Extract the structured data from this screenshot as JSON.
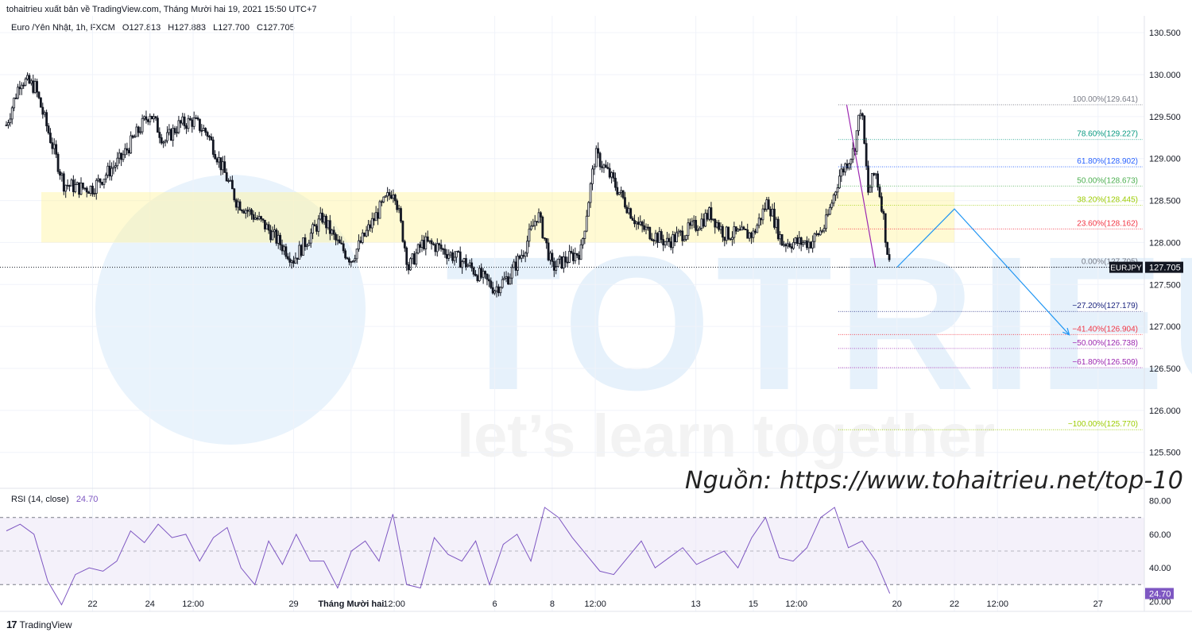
{
  "header": {
    "publisher_line": "tohaitrieu xuất bản về TradingView.com, Tháng Mười hai 19, 2021 15:50 UTC+7"
  },
  "symbol_bar": {
    "name": "Euro /Yên Nhật, 1h, FXCM",
    "open": "O127.813",
    "high": "H127.883",
    "low": "L127.700",
    "close": "C127.705"
  },
  "watermark": {
    "brand": "TOTRIEU",
    "slogan": "let’s learn together"
  },
  "source_note": "Nguồn: https://www.tohaitrieu.net/top-10",
  "footer": {
    "logo": "17",
    "brand": "TradingView"
  },
  "colors": {
    "candle": "#131722",
    "rsi": "#7e57c2",
    "zone": "#fff59d",
    "arrow": "#2196f3",
    "magenta": "#9c27b0",
    "red": "#f23645",
    "blue": "#2962ff",
    "navy": "#1a237e",
    "green": "#4caf50",
    "teal": "#089981",
    "lime": "#9ccc00",
    "gray": "#787b86"
  },
  "chart_data": [
    {
      "type": "candlestick",
      "symbol_tag": "EURJPY",
      "last_price": "127.705",
      "ylim": [
        125.1,
        130.7
      ],
      "y_ticks": [
        "125.500",
        "126.000",
        "126.500",
        "127.000",
        "127.500",
        "128.000",
        "128.500",
        "129.000",
        "129.500",
        "130.000",
        "130.500"
      ],
      "x_ticks": [
        "22",
        "24",
        "12:00",
        "29",
        "Tháng Mười hai",
        "12:00",
        "6",
        "8",
        "12:00",
        "13",
        "15",
        "12:00",
        "20",
        "22",
        "12:00",
        "27"
      ],
      "price_path": [
        [
          "Nov 19",
          129.4
        ],
        [
          "Nov 19 12:00",
          129.95
        ],
        [
          "Nov 20",
          129.85
        ],
        [
          "Nov 21",
          128.7
        ],
        [
          "Nov 21 12:00",
          128.65
        ],
        [
          "Nov 22",
          128.65
        ],
        [
          "Nov 23",
          129.0
        ],
        [
          "Nov 24",
          129.55
        ],
        [
          "Nov 24 12:00",
          129.2
        ],
        [
          "Nov 25",
          129.4
        ],
        [
          "Nov 25 12:00",
          129.45
        ],
        [
          "Nov 26",
          129.3
        ],
        [
          "Nov 27",
          128.5
        ],
        [
          "Nov 28",
          128.2
        ],
        [
          "Nov 29",
          127.8
        ],
        [
          "Nov 30",
          128.3
        ],
        [
          "Nov 30 12:00",
          128.0
        ],
        [
          "Dec 1",
          127.8
        ],
        [
          "Dec 2",
          128.4
        ],
        [
          "Dec 2 12:00",
          128.65
        ],
        [
          "Dec 3",
          127.7
        ],
        [
          "Dec 3 12:00",
          128.0
        ],
        [
          "Dec 4",
          127.95
        ],
        [
          "Dec 5",
          127.75
        ],
        [
          "Dec 6",
          127.45
        ],
        [
          "Dec 6 12:00",
          127.6
        ],
        [
          "Dec 7",
          127.9
        ],
        [
          "Dec 7 12:00",
          128.35
        ],
        [
          "Dec 8",
          127.7
        ],
        [
          "Dec 9",
          127.9
        ],
        [
          "Dec 9 12:00",
          129.05
        ],
        [
          "Dec 10",
          128.8
        ],
        [
          "Dec 11",
          128.2
        ],
        [
          "Dec 12",
          128.0
        ],
        [
          "Dec 13",
          128.2
        ],
        [
          "Dec 13 12:00",
          128.35
        ],
        [
          "Dec 14",
          128.1
        ],
        [
          "Dec 15",
          128.1
        ],
        [
          "Dec 15 12:00",
          128.5
        ],
        [
          "Dec 16",
          128.0
        ],
        [
          "Dec 17",
          128.0
        ],
        [
          "Dec 17 12:00",
          128.2
        ],
        [
          "Dec 18",
          128.8
        ],
        [
          "Dec 18 12:00",
          129.1
        ],
        [
          "Dec 18 18:00",
          129.64
        ],
        [
          "Dec 19",
          128.6
        ],
        [
          "Dec 19 06:00",
          128.85
        ],
        [
          "Dec 19 12:00",
          128.4
        ],
        [
          "Dec 19 15:00",
          128.0
        ],
        [
          "Dec 19 18:00",
          127.705
        ]
      ],
      "support_zone": [
        128.0,
        128.6
      ],
      "fibonacci": [
        {
          "label": "100.00%(129.641)",
          "value": 129.641,
          "color": "#787b86"
        },
        {
          "label": "78.60%(129.227)",
          "value": 129.227,
          "color": "#089981"
        },
        {
          "label": "61.80%(128.902)",
          "value": 128.902,
          "color": "#2962ff"
        },
        {
          "label": "50.00%(128.673)",
          "value": 128.673,
          "color": "#4caf50"
        },
        {
          "label": "38.20%(128.445)",
          "value": 128.445,
          "color": "#9ccc00"
        },
        {
          "label": "23.60%(128.162)",
          "value": 128.162,
          "color": "#f23645"
        },
        {
          "label": "0.00%(127.705)",
          "value": 127.705,
          "color": "#787b86"
        },
        {
          "label": "−27.20%(127.179)",
          "value": 127.179,
          "color": "#1a237e"
        },
        {
          "label": "−41.40%(126.904)",
          "value": 126.904,
          "color": "#f23645"
        },
        {
          "label": "−50.00%(126.738)",
          "value": 126.738,
          "color": "#9c27b0"
        },
        {
          "label": "−61.80%(126.509)",
          "value": 126.509,
          "color": "#9c27b0"
        },
        {
          "label": "−100.00%(125.770)",
          "value": 125.77,
          "color": "#9ccc00"
        }
      ],
      "projection": [
        [
          "Dec 20",
          127.705
        ],
        [
          "Dec 22",
          128.4
        ],
        [
          "Dec 26",
          126.9
        ]
      ]
    },
    {
      "type": "line",
      "title": "RSI (14, close)",
      "current": "24.70",
      "ylim": [
        15,
        85
      ],
      "y_ticks": [
        "20.00",
        "40.00",
        "60.00",
        "80.00"
      ],
      "levels": [
        30,
        50,
        70
      ],
      "values": [
        62,
        66,
        60,
        32,
        18,
        36,
        40,
        38,
        44,
        62,
        55,
        66,
        58,
        60,
        44,
        58,
        64,
        40,
        30,
        56,
        42,
        60,
        44,
        44,
        28,
        50,
        56,
        44,
        72,
        30,
        28,
        58,
        48,
        44,
        56,
        30,
        54,
        60,
        44,
        76,
        70,
        58,
        48,
        38,
        36,
        46,
        56,
        40,
        46,
        52,
        42,
        46,
        50,
        40,
        58,
        70,
        46,
        44,
        52,
        70,
        76,
        52,
        56,
        44,
        24.7
      ]
    }
  ]
}
